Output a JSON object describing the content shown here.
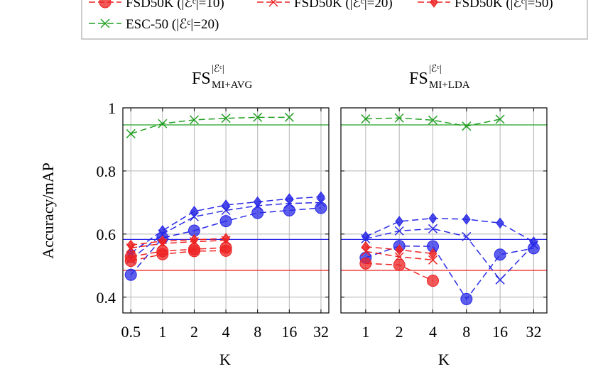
{
  "legend": {
    "items": [
      {
        "label": "FSD50K (|ℰᶜ|=10)",
        "series_key": "fsd10"
      },
      {
        "label": "FSD50K (|ℰᶜ|=20)",
        "series_key": "fsd20"
      },
      {
        "label": "FSD50K (|ℰᶜ|=50)",
        "series_key": "fsd50"
      },
      {
        "label": "ESC-50 (|ℰᶜ|=20)",
        "series_key": "esc20"
      }
    ]
  },
  "colors": {
    "fsd10": "#ee2222",
    "fsd20": "#ee2222",
    "fsd50": "#ee2222",
    "esc": "#22a022",
    "blue": "#2a2ae8",
    "grid": "#b4b4b4"
  },
  "chart_data": [
    {
      "type": "line",
      "title_main": "FS",
      "title_sup": "|ℰᶜ|",
      "title_sub": "MI+AVG",
      "xlabel": "K",
      "ylabel": "Accuracy/mAP",
      "x_tick_labels": [
        "0.5",
        "1",
        "2",
        "4",
        "8",
        "16",
        "32"
      ],
      "y_tick_labels": [
        "0.4",
        "0.6",
        "0.8",
        "1"
      ],
      "xlim": [
        0.42,
        38
      ],
      "ylim": [
        0.35,
        1.0
      ],
      "xscale": "log2",
      "hlines": [
        {
          "color_key": "esc",
          "y": 0.946
        },
        {
          "color_key": "blue",
          "y": 0.583
        },
        {
          "color_key": "fsd10",
          "y": 0.485
        }
      ],
      "series": [
        {
          "key": "esc20",
          "color_key": "esc",
          "marker": "x",
          "x": [
            0.5,
            1,
            2,
            4,
            8,
            16
          ],
          "y": [
            0.918,
            0.95,
            0.962,
            0.967,
            0.97,
            0.97
          ]
        },
        {
          "key": "blue_circle",
          "color_key": "blue",
          "marker": "circle",
          "x": [
            0.5,
            1,
            2,
            4,
            8,
            16,
            32
          ],
          "y": [
            0.471,
            0.588,
            0.611,
            0.641,
            0.667,
            0.675,
            0.683
          ]
        },
        {
          "key": "blue_x",
          "color_key": "blue",
          "marker": "x",
          "x": [
            0.5,
            1,
            2,
            4,
            8,
            16,
            32
          ],
          "y": [
            0.52,
            0.6,
            0.655,
            0.675,
            0.69,
            0.697,
            0.7
          ]
        },
        {
          "key": "blue_diamond",
          "color_key": "blue",
          "marker": "diamond",
          "x": [
            0.5,
            1,
            2,
            4,
            8,
            16,
            32
          ],
          "y": [
            0.54,
            0.611,
            0.672,
            0.692,
            0.702,
            0.712,
            0.718
          ]
        },
        {
          "key": "fsd10",
          "color_key": "fsd10",
          "marker": "circle",
          "x": [
            0.5,
            1,
            2,
            4
          ],
          "y": [
            0.515,
            0.536,
            0.546,
            0.547
          ]
        },
        {
          "key": "fsd10b",
          "color_key": "fsd10",
          "marker": "circle",
          "x": [
            0.5,
            1,
            2,
            4
          ],
          "y": [
            0.528,
            0.546,
            0.552,
            0.557
          ]
        },
        {
          "key": "fsd20",
          "color_key": "fsd20",
          "marker": "x",
          "x": [
            0.5,
            1,
            2,
            4
          ],
          "y": [
            0.556,
            0.57,
            0.576,
            0.58
          ]
        },
        {
          "key": "fsd50",
          "color_key": "fsd50",
          "marker": "diamond",
          "x": [
            0.5,
            1,
            2,
            4
          ],
          "y": [
            0.565,
            0.578,
            0.582,
            0.586
          ]
        }
      ]
    },
    {
      "type": "line",
      "title_main": "FS",
      "title_sup": "|ℰᶜ|",
      "title_sub": "MI+LDA",
      "xlabel": "K",
      "ylabel": "",
      "x_tick_labels": [
        "1",
        "2",
        "4",
        "8",
        "16",
        "32"
      ],
      "y_tick_labels": [],
      "xlim": [
        0.6,
        42
      ],
      "ylim": [
        0.35,
        1.0
      ],
      "xscale": "log2",
      "hlines": [
        {
          "color_key": "esc",
          "y": 0.946
        },
        {
          "color_key": "blue",
          "y": 0.583
        },
        {
          "color_key": "fsd10",
          "y": 0.485
        }
      ],
      "series": [
        {
          "key": "esc20",
          "color_key": "esc",
          "marker": "x",
          "x": [
            1,
            2,
            4,
            8,
            16
          ],
          "y": [
            0.965,
            0.968,
            0.961,
            0.942,
            0.964
          ]
        },
        {
          "key": "blue_circle",
          "color_key": "blue",
          "marker": "circle",
          "x": [
            1,
            2,
            4,
            8,
            16,
            32
          ],
          "y": [
            0.525,
            0.562,
            0.561,
            0.394,
            0.535,
            0.555
          ]
        },
        {
          "key": "blue_x",
          "color_key": "blue",
          "marker": "x",
          "x": [
            1,
            2,
            4,
            8,
            16,
            32
          ],
          "y": [
            0.585,
            0.61,
            0.617,
            0.592,
            0.455,
            0.566
          ]
        },
        {
          "key": "blue_diamond",
          "color_key": "blue",
          "marker": "diamond",
          "x": [
            1,
            2,
            4,
            8,
            16,
            32
          ],
          "y": [
            0.592,
            0.64,
            0.65,
            0.647,
            0.635,
            0.575
          ]
        },
        {
          "key": "fsd10",
          "color_key": "fsd10",
          "marker": "circle",
          "x": [
            1,
            2,
            4
          ],
          "y": [
            0.507,
            0.502,
            0.452
          ]
        },
        {
          "key": "fsd20",
          "color_key": "fsd20",
          "marker": "x",
          "x": [
            1,
            2,
            4
          ],
          "y": [
            0.545,
            0.528,
            0.518
          ]
        },
        {
          "key": "fsd50",
          "color_key": "fsd50",
          "marker": "diamond",
          "x": [
            1,
            2,
            4
          ],
          "y": [
            0.56,
            0.55,
            0.538
          ]
        }
      ]
    }
  ]
}
